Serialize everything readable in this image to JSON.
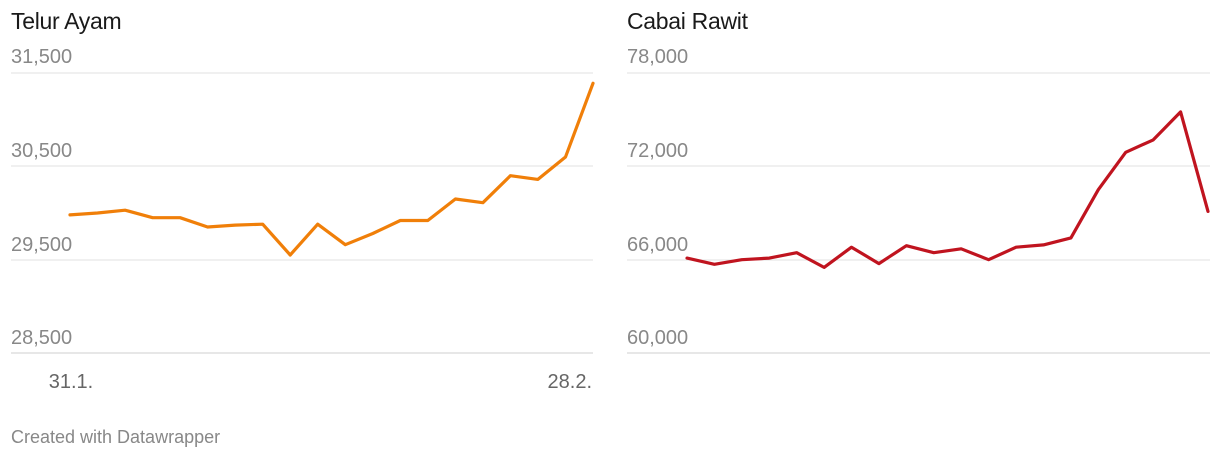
{
  "footer": {
    "credit": "Created with Datawrapper"
  },
  "chart_data": [
    {
      "type": "line",
      "title": "Telur Ayam",
      "color": "#f07f09",
      "ylim": [
        28500,
        31500
      ],
      "y_ticks": [
        31500,
        30500,
        29500,
        28500
      ],
      "y_tick_labels": [
        "31,500",
        "30,500",
        "29,500",
        "28,500"
      ],
      "x_tick_labels": [
        "31.1.",
        "28.2."
      ],
      "grid": true,
      "series": [
        {
          "values": [
            29980,
            30000,
            30030,
            29950,
            29950,
            29850,
            29870,
            29880,
            29550,
            29880,
            29660,
            29780,
            29920,
            29920,
            30150,
            30110,
            30400,
            30360,
            30600,
            31390
          ]
        }
      ]
    },
    {
      "type": "line",
      "title": "Cabai Rawit",
      "color": "#c0141f",
      "ylim": [
        60000,
        78000
      ],
      "y_ticks": [
        78000,
        72000,
        66000,
        60000
      ],
      "y_tick_labels": [
        "78,000",
        "72,000",
        "66,000",
        "60,000"
      ],
      "grid": true,
      "series": [
        {
          "values": [
            66100,
            65700,
            66000,
            66100,
            66450,
            65500,
            66800,
            65750,
            66900,
            66450,
            66700,
            66000,
            66800,
            66950,
            67400,
            70500,
            72900,
            73700,
            75500,
            69100
          ]
        }
      ]
    }
  ]
}
